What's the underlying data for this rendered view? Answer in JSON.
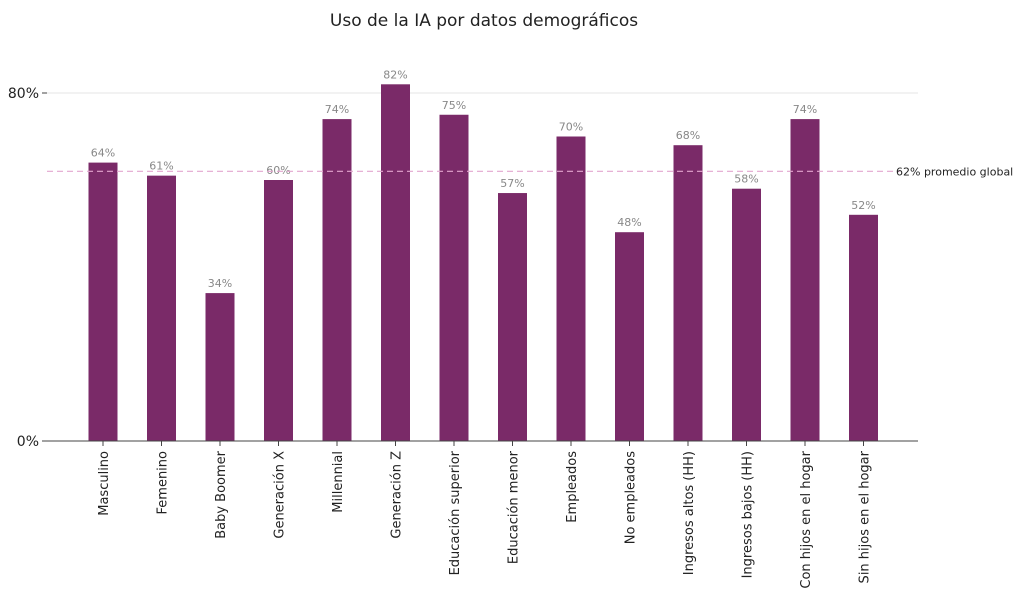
{
  "chart_data": {
    "type": "bar",
    "title": "Uso de la IA por datos demográficos",
    "categories": [
      "Masculino",
      "Femenino",
      "Baby Boomer",
      "Generación X",
      "Millennial",
      "Generación Z",
      "Educación superior",
      "Educación menor",
      "Empleados",
      "No empleados",
      "Ingresos altos (HH)",
      "Ingresos bajos (HH)",
      "Con hijos en el hogar",
      "Sin hijos en el hogar"
    ],
    "values": [
      64,
      61,
      34,
      60,
      74,
      82,
      75,
      57,
      70,
      48,
      68,
      58,
      74,
      52
    ],
    "value_labels": [
      "64%",
      "61%",
      "34%",
      "60%",
      "74%",
      "82%",
      "75%",
      "57%",
      "70%",
      "48%",
      "68%",
      "58%",
      "74%",
      "52%"
    ],
    "ylim": [
      0,
      80
    ],
    "yticks": [
      0,
      80
    ],
    "ytick_labels": [
      "0%",
      "80%"
    ],
    "xlabel": "",
    "ylabel": "",
    "reference_line": {
      "value": 62,
      "label": "62% promedio global",
      "color": "#e3a6cf"
    },
    "bar_color": "#7a2a68",
    "grid": true
  }
}
